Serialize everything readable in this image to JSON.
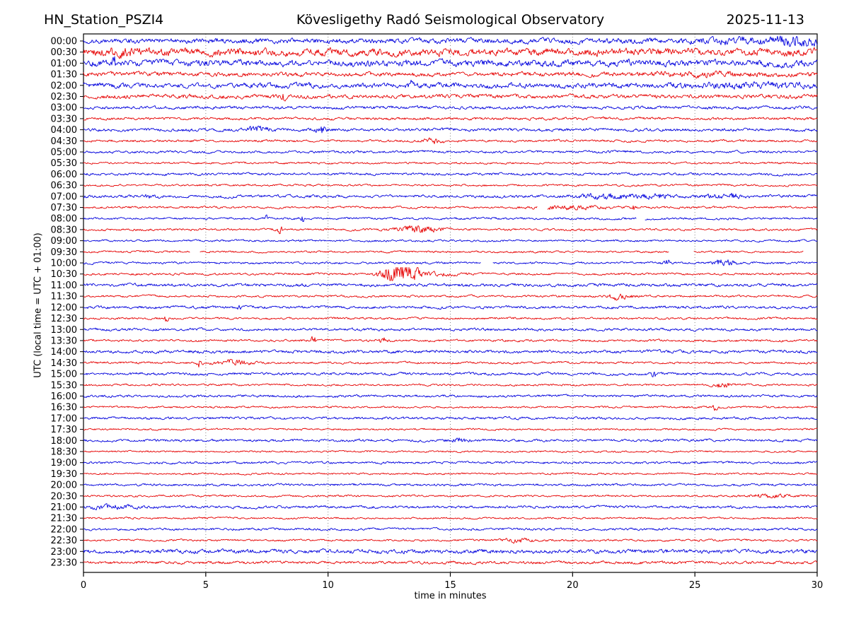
{
  "header": {
    "station": "HN_Station_PSZI4",
    "observatory": "Kövesligethy Radó Seismological Observatory",
    "date": "2025-11-13"
  },
  "chart_data": {
    "type": "line",
    "variant": "helicorder-drum-plot",
    "title": "HN_Station_PSZI4 — Kövesligethy Radó Seismological Observatory — 2025-11-13",
    "xlabel": "time in minutes",
    "ylabel": "UTC (local time = UTC + 01:00)",
    "xlim": [
      0,
      30
    ],
    "x_ticks": [
      0,
      5,
      10,
      15,
      20,
      25,
      30
    ],
    "grid_minutes": [
      5,
      10,
      15,
      20,
      25
    ],
    "grid_on": true,
    "minutes_per_row": 30,
    "colors": {
      "blue": "#0000dd",
      "red": "#e60000",
      "grid": "#888888",
      "frame": "#000000"
    },
    "rows": [
      {
        "label": "00:00",
        "color": "blue",
        "amp": 2.8,
        "events": [
          {
            "min": 27.5,
            "w": 1.8,
            "amp": 1.5
          },
          {
            "min": 29.3,
            "w": 0.6,
            "amp": 2.0
          }
        ]
      },
      {
        "label": "00:30",
        "color": "red",
        "amp": 4.0,
        "events": [
          {
            "min": 1.5,
            "w": 0.4,
            "amp": 2.0
          }
        ]
      },
      {
        "label": "01:00",
        "color": "blue",
        "amp": 3.6,
        "events": [
          {
            "min": 1.25,
            "w": 0.07,
            "amp": 5.0
          }
        ]
      },
      {
        "label": "01:30",
        "color": "red",
        "amp": 2.4,
        "events": [
          {
            "min": 25.5,
            "w": 1.5,
            "amp": 1.0
          }
        ]
      },
      {
        "label": "02:00",
        "color": "blue",
        "amp": 2.8,
        "events": [
          {
            "min": 13.4,
            "w": 0.06,
            "amp": 4.5
          },
          {
            "min": 27.0,
            "w": 2.0,
            "amp": 1.2
          }
        ]
      },
      {
        "label": "02:30",
        "color": "red",
        "amp": 2.2,
        "events": [
          {
            "min": 4.3,
            "w": 0.1,
            "amp": 2.5
          },
          {
            "min": 8.2,
            "w": 0.07,
            "amp": 3.5
          }
        ]
      },
      {
        "label": "03:00",
        "color": "blue",
        "amp": 1.7
      },
      {
        "label": "03:30",
        "color": "red",
        "amp": 1.5
      },
      {
        "label": "04:00",
        "color": "blue",
        "amp": 1.7,
        "events": [
          {
            "min": 7.1,
            "w": 0.3,
            "amp": 2.0
          },
          {
            "min": 9.7,
            "w": 0.15,
            "amp": 3.0
          }
        ]
      },
      {
        "label": "04:30",
        "color": "red",
        "amp": 1.3,
        "events": [
          {
            "min": 14.3,
            "w": 0.3,
            "amp": 2.0
          }
        ]
      },
      {
        "label": "05:00",
        "color": "blue",
        "amp": 1.4
      },
      {
        "label": "05:30",
        "color": "red",
        "amp": 1.1
      },
      {
        "label": "06:00",
        "color": "blue",
        "amp": 1.4
      },
      {
        "label": "06:30",
        "color": "red",
        "amp": 1.1
      },
      {
        "label": "07:00",
        "color": "blue",
        "amp": 1.6,
        "events": [
          {
            "min": 2.8,
            "w": 0.2,
            "amp": 1.5
          },
          {
            "min": 21.5,
            "w": 0.8,
            "amp": 1.6
          },
          {
            "min": 23.5,
            "w": 0.5,
            "amp": 1.3
          },
          {
            "min": 26.3,
            "w": 0.6,
            "amp": 1.6
          }
        ]
      },
      {
        "label": "07:30",
        "color": "red",
        "amp": 1.2,
        "events": [
          {
            "min": 19.8,
            "w": 1.0,
            "amp": 1.4
          },
          {
            "min": 22.5,
            "w": 0.06,
            "amp": 4.0
          }
        ],
        "gaps": [
          [
            18.55,
            18.95
          ]
        ]
      },
      {
        "label": "08:00",
        "color": "blue",
        "amp": 1.2,
        "events": [
          {
            "min": 7.45,
            "w": 0.07,
            "amp": 2.5
          },
          {
            "min": 8.95,
            "w": 0.07,
            "amp": 3.2
          }
        ],
        "gaps": [
          [
            22.6,
            22.95
          ]
        ]
      },
      {
        "label": "08:30",
        "color": "red",
        "amp": 1.2,
        "events": [
          {
            "min": 8.05,
            "w": 0.07,
            "amp": 3.8
          },
          {
            "min": 13.5,
            "w": 0.45,
            "amp": 2.8
          },
          {
            "min": 14.4,
            "w": 0.3,
            "amp": 1.2
          }
        ]
      },
      {
        "label": "09:00",
        "color": "blue",
        "amp": 1.1
      },
      {
        "label": "09:30",
        "color": "red",
        "amp": 1.1,
        "gaps": [
          [
            4.35,
            4.75
          ],
          [
            23.95,
            24.95
          ],
          [
            29.45,
            30.0
          ]
        ]
      },
      {
        "label": "10:00",
        "color": "blue",
        "amp": 1.2,
        "events": [
          {
            "min": 23.85,
            "w": 0.12,
            "amp": 2.6
          },
          {
            "min": 26.0,
            "w": 0.2,
            "amp": 1.8
          },
          {
            "min": 26.45,
            "w": 0.2,
            "amp": 1.8
          }
        ],
        "gaps": [
          [
            16.25,
            16.75
          ]
        ]
      },
      {
        "label": "10:30",
        "color": "red",
        "amp": 1.2,
        "events": [
          {
            "min": 12.55,
            "w": 0.3,
            "amp": 6.5
          },
          {
            "min": 13.15,
            "w": 0.25,
            "amp": 6.0
          },
          {
            "min": 13.55,
            "w": 0.15,
            "amp": 4.0
          },
          {
            "min": 14.3,
            "w": 0.8,
            "amp": 1.2
          }
        ]
      },
      {
        "label": "11:00",
        "color": "blue",
        "amp": 1.7
      },
      {
        "label": "11:30",
        "color": "red",
        "amp": 1.2,
        "events": [
          {
            "min": 21.9,
            "w": 0.3,
            "amp": 2.4
          }
        ]
      },
      {
        "label": "12:00",
        "color": "blue",
        "amp": 1.5,
        "events": [
          {
            "min": 6.4,
            "w": 0.08,
            "amp": 2.2
          }
        ]
      },
      {
        "label": "12:30",
        "color": "red",
        "amp": 1.2,
        "events": [
          {
            "min": 3.4,
            "w": 0.07,
            "amp": 3.5
          }
        ]
      },
      {
        "label": "13:00",
        "color": "blue",
        "amp": 1.5
      },
      {
        "label": "13:30",
        "color": "red",
        "amp": 1.2,
        "events": [
          {
            "min": 9.4,
            "w": 0.07,
            "amp": 3.8
          },
          {
            "min": 12.3,
            "w": 0.15,
            "amp": 2.0
          }
        ]
      },
      {
        "label": "14:00",
        "color": "blue",
        "amp": 1.7
      },
      {
        "label": "14:30",
        "color": "red",
        "amp": 1.2,
        "events": [
          {
            "min": 4.75,
            "w": 0.08,
            "amp": 3.0
          },
          {
            "min": 6.2,
            "w": 0.5,
            "amp": 1.8
          }
        ]
      },
      {
        "label": "15:00",
        "color": "blue",
        "amp": 1.5,
        "events": [
          {
            "min": 23.3,
            "w": 0.08,
            "amp": 3.0
          }
        ]
      },
      {
        "label": "15:30",
        "color": "red",
        "amp": 1.1,
        "events": [
          {
            "min": 26.1,
            "w": 0.3,
            "amp": 1.6
          }
        ]
      },
      {
        "label": "16:00",
        "color": "blue",
        "amp": 1.4
      },
      {
        "label": "16:30",
        "color": "red",
        "amp": 1.1,
        "events": [
          {
            "min": 25.8,
            "w": 0.08,
            "amp": 2.6
          }
        ]
      },
      {
        "label": "17:00",
        "color": "blue",
        "amp": 1.4
      },
      {
        "label": "17:30",
        "color": "red",
        "amp": 1.0
      },
      {
        "label": "18:00",
        "color": "blue",
        "amp": 1.4,
        "events": [
          {
            "min": 15.3,
            "w": 0.3,
            "amp": 1.6
          }
        ]
      },
      {
        "label": "18:30",
        "color": "red",
        "amp": 1.0
      },
      {
        "label": "19:00",
        "color": "blue",
        "amp": 1.3
      },
      {
        "label": "19:30",
        "color": "red",
        "amp": 1.0
      },
      {
        "label": "20:00",
        "color": "blue",
        "amp": 1.3
      },
      {
        "label": "20:30",
        "color": "red",
        "amp": 1.1,
        "events": [
          {
            "min": 28.1,
            "w": 0.5,
            "amp": 1.5
          }
        ]
      },
      {
        "label": "21:00",
        "color": "blue",
        "amp": 1.5,
        "events": [
          {
            "min": 1.2,
            "w": 0.7,
            "amp": 1.3
          }
        ]
      },
      {
        "label": "21:30",
        "color": "red",
        "amp": 1.0
      },
      {
        "label": "22:00",
        "color": "blue",
        "amp": 1.3
      },
      {
        "label": "22:30",
        "color": "red",
        "amp": 1.1,
        "events": [
          {
            "min": 17.8,
            "w": 0.4,
            "amp": 1.6
          }
        ]
      },
      {
        "label": "23:00",
        "color": "blue",
        "amp": 2.2
      },
      {
        "label": "23:30",
        "color": "red",
        "amp": 1.6
      }
    ]
  }
}
